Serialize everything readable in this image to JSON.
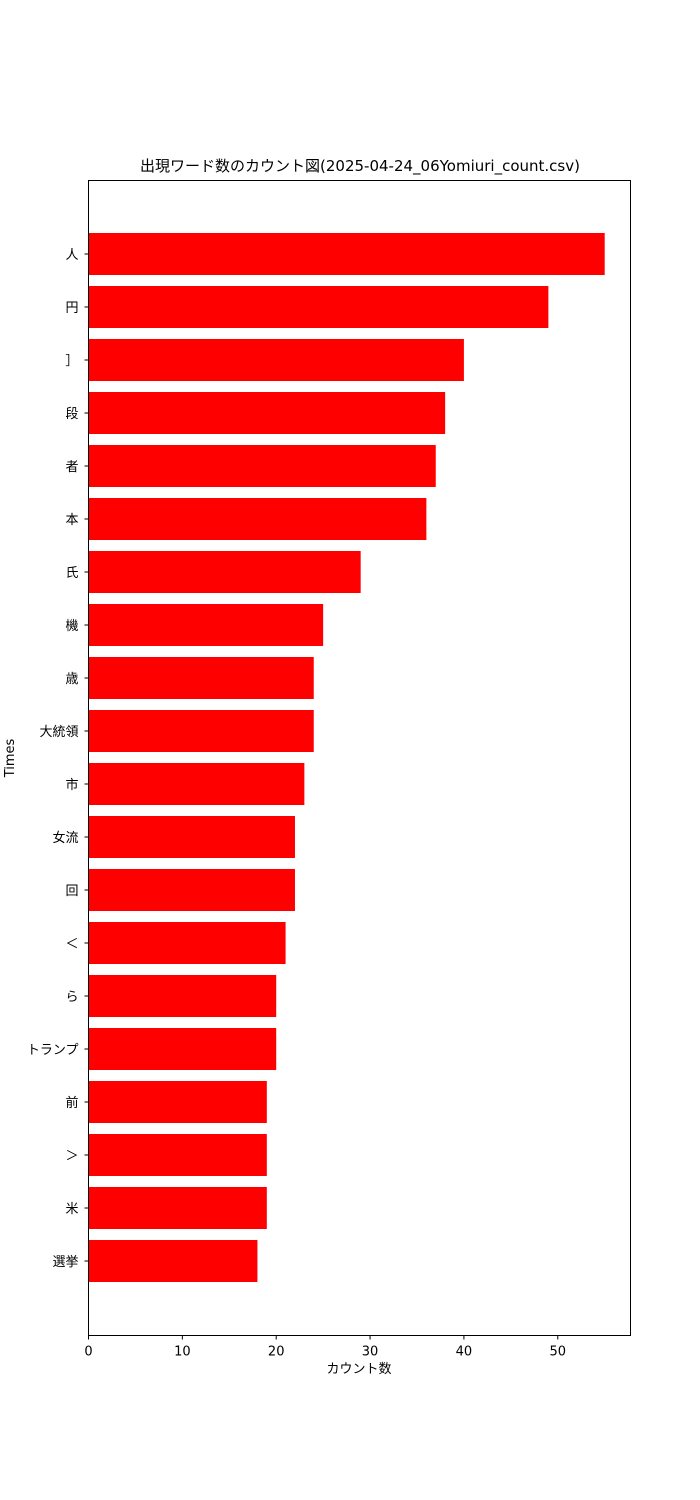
{
  "colors": {
    "bar": "#ff0000",
    "axis": "#000000",
    "background": "#ffffff"
  },
  "chart_data": {
    "type": "bar",
    "orientation": "horizontal",
    "title": "出現ワード数のカウント図(2025-04-24_06Yomiuri_count.csv)",
    "xlabel": "カウント数",
    "ylabel": "Times",
    "categories": [
      "人",
      "円",
      "］",
      "段",
      "者",
      "本",
      "氏",
      "機",
      "歳",
      "大統領",
      "市",
      "女流",
      "回",
      "＜",
      "ら",
      "トランプ",
      "前",
      "＞",
      "米",
      "選挙"
    ],
    "values": [
      55,
      49,
      40,
      38,
      37,
      36,
      29,
      25,
      24,
      24,
      23,
      22,
      22,
      21,
      20,
      20,
      19,
      19,
      19,
      18
    ],
    "xlim": [
      0,
      57.75
    ],
    "xticks": [
      0,
      10,
      20,
      30,
      40,
      50
    ],
    "grid": false,
    "legend": "none"
  }
}
